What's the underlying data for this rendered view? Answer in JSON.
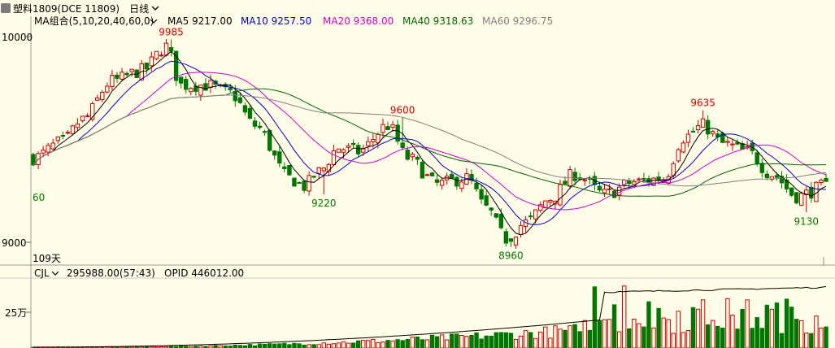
{
  "window": {
    "symbol_label": "塑料1809(DCE 11809)",
    "period_label": "日线",
    "icons": {
      "symbol_icon": "square-icon",
      "period_icon": "chevron-down-icon"
    }
  },
  "price_panel": {
    "indicator_label": "MA组合(5,10,20,40,60,0)",
    "ma_legend": [
      {
        "name": "MA5",
        "value": "9217.00",
        "color": "#000000"
      },
      {
        "name": "MA10",
        "value": "9257.50",
        "color": "#0000cc"
      },
      {
        "name": "MA20",
        "value": "9368.00",
        "color": "#cc00cc"
      },
      {
        "name": "MA40",
        "value": "9318.63",
        "color": "#006600"
      },
      {
        "name": "MA60",
        "value": "9296.75",
        "color": "#808080"
      }
    ],
    "y_ticks": [
      "10000",
      "9000"
    ],
    "days_label": "109天",
    "annotations": [
      {
        "text": "60",
        "kind": "low"
      },
      {
        "text": "9985",
        "kind": "high"
      },
      {
        "text": "9220",
        "kind": "low"
      },
      {
        "text": "9600",
        "kind": "high"
      },
      {
        "text": "8960",
        "kind": "low"
      },
      {
        "text": "9635",
        "kind": "high"
      },
      {
        "text": "9130",
        "kind": "low"
      }
    ],
    "colors": {
      "up": "#cc0000",
      "down": "#007700",
      "background": "#fffde8"
    }
  },
  "volume_panel": {
    "indicator_label": "CJL",
    "volume_label": "295988.00(57:43)",
    "opid_label": "OPID 446012.00",
    "y_tick": "25万",
    "icons": {
      "indicator_icon": "chevron-down-icon"
    }
  },
  "chart_data": {
    "type": "candlestick",
    "count": 82,
    "y_range": [
      8870,
      10100
    ],
    "anchors": [
      {
        "i": 0,
        "c": 9400
      },
      {
        "i": 6,
        "c": 9480
      },
      {
        "i": 10,
        "c": 9590
      },
      {
        "i": 16,
        "c": 9780
      },
      {
        "i": 22,
        "c": 9830
      },
      {
        "i": 27,
        "c": 9950
      },
      {
        "i": 30,
        "c": 9760
      },
      {
        "i": 35,
        "c": 9760
      },
      {
        "i": 40,
        "c": 9720
      },
      {
        "i": 45,
        "c": 9560
      },
      {
        "i": 52,
        "c": 9300
      },
      {
        "i": 55,
        "c": 9260
      },
      {
        "i": 58,
        "c": 9330
      },
      {
        "i": 62,
        "c": 9450
      },
      {
        "i": 66,
        "c": 9430
      },
      {
        "i": 72,
        "c": 9560
      },
      {
        "i": 76,
        "c": 9400
      },
      {
        "i": 82,
        "c": 9270
      },
      {
        "i": 88,
        "c": 9300
      },
      {
        "i": 92,
        "c": 9150
      },
      {
        "i": 96,
        "c": 9000
      },
      {
        "i": 100,
        "c": 9080
      },
      {
        "i": 105,
        "c": 9200
      },
      {
        "i": 110,
        "c": 9320
      },
      {
        "i": 116,
        "c": 9220
      },
      {
        "i": 122,
        "c": 9280
      },
      {
        "i": 128,
        "c": 9300
      },
      {
        "i": 132,
        "c": 9500
      },
      {
        "i": 136,
        "c": 9560
      },
      {
        "i": 140,
        "c": 9470
      },
      {
        "i": 145,
        "c": 9430
      },
      {
        "i": 150,
        "c": 9320
      },
      {
        "i": 155,
        "c": 9210
      },
      {
        "i": 161,
        "c": 9260
      }
    ],
    "extremes": [
      {
        "bar": 28,
        "value": 9985,
        "type": "high"
      },
      {
        "bar": 59,
        "value": 9220,
        "type": "low"
      },
      {
        "bar": 75,
        "value": 9600,
        "type": "high"
      },
      {
        "bar": 97,
        "value": 8960,
        "type": "low"
      },
      {
        "bar": 136,
        "value": 9635,
        "type": "high"
      },
      {
        "bar": 157,
        "value": 9130,
        "type": "low"
      }
    ],
    "volume_range": [
      0,
      380000
    ],
    "volume_tick": 250000
  }
}
